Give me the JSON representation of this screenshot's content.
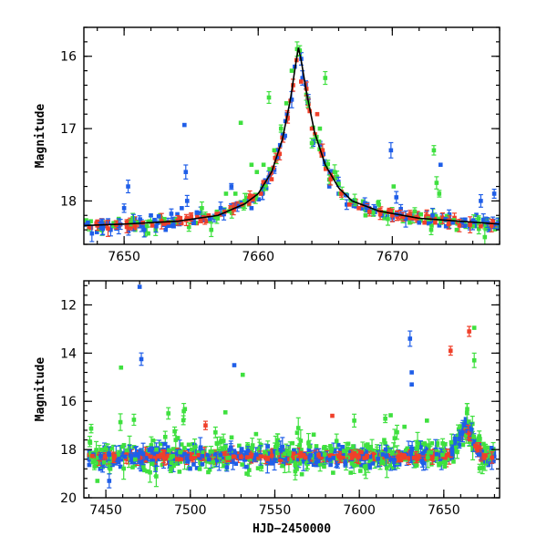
{
  "chart_data": [
    {
      "type": "scatter",
      "panel": "top",
      "title": "",
      "xlabel": "",
      "ylabel": "Magnitude",
      "xlim": [
        7647,
        7678
      ],
      "ylim": [
        18.6,
        15.6
      ],
      "y_inverted": true,
      "x_ticks": [
        7650,
        7660,
        7670
      ],
      "y_ticks": [
        16,
        17,
        18
      ],
      "grid": false,
      "legend": "none",
      "colors": {
        "blue": "#1f5ee8",
        "green": "#3fe03f",
        "red": "#f0402a",
        "model": "#000000"
      },
      "model_curve": {
        "peak_x": 7663.0,
        "peak_mag": 15.88,
        "baseline_mag": 18.34,
        "x": [
          7647,
          7650,
          7654,
          7657,
          7659,
          7660,
          7661,
          7661.8,
          7662.4,
          7662.8,
          7663.0,
          7663.2,
          7663.6,
          7664.2,
          7665,
          7666,
          7667,
          7669,
          7672,
          7678
        ],
        "y": [
          18.34,
          18.32,
          18.28,
          18.2,
          18.04,
          17.9,
          17.6,
          17.15,
          16.6,
          16.1,
          15.88,
          16.05,
          16.5,
          17.05,
          17.5,
          17.82,
          18.0,
          18.14,
          18.24,
          18.32
        ]
      },
      "series": [
        {
          "color": "blue",
          "x": [
            7647.3,
            7647.6,
            7648.4,
            7649.0,
            7649.6,
            7650.0,
            7650.3,
            7650.7,
            7651.5,
            7652.0,
            7652.4,
            7653.1,
            7653.7,
            7654.3,
            7654.5,
            7654.6,
            7654.7,
            7655.2,
            7656.4,
            7657.2,
            7658.0,
            7659.1,
            7659.5,
            7660.3,
            7661.5,
            7662.0,
            7662.5,
            7663.3,
            7664.1,
            7665.3,
            7666.0,
            7666.6,
            7667.0,
            7668.1,
            7669.2,
            7669.9,
            7670.3,
            7671.0,
            7672.0,
            7673.0,
            7673.6,
            7674.0,
            7674.5,
            7675.2,
            7676.0,
            7676.6,
            7677.1,
            7677.6
          ],
          "y": [
            18.3,
            18.45,
            18.36,
            18.4,
            18.35,
            18.1,
            17.8,
            18.3,
            18.4,
            18.2,
            18.35,
            18.4,
            18.35,
            18.1,
            16.95,
            17.6,
            18.0,
            18.3,
            18.25,
            18.1,
            17.8,
            18.0,
            18.1,
            17.9,
            17.4,
            17.1,
            16.6,
            16.3,
            17.2,
            17.8,
            17.9,
            18.05,
            18.0,
            18.1,
            18.2,
            17.3,
            17.95,
            18.25,
            18.3,
            18.2,
            17.5,
            18.35,
            18.3,
            18.3,
            18.35,
            18.0,
            18.3,
            17.9
          ]
        },
        {
          "color": "green",
          "x": [
            7650.5,
            7651.8,
            7653.0,
            7655.8,
            7656.5,
            7657.6,
            7658.3,
            7658.7,
            7659.0,
            7659.5,
            7659.9,
            7660.4,
            7660.8,
            7661.2,
            7661.7,
            7662.1,
            7662.5,
            7662.9,
            7663.1,
            7664.0,
            7664.6,
            7665.0,
            7665.7,
            7666.1,
            7666.9,
            7668.0,
            7669.0,
            7670.1,
            7671.3,
            7672.9,
            7673.1,
            7673.3,
            7673.5,
            7674.8,
            7676.0,
            7676.9
          ],
          "y": [
            18.3,
            18.45,
            18.25,
            18.1,
            18.4,
            17.9,
            17.9,
            16.92,
            18.0,
            17.5,
            17.6,
            17.5,
            16.57,
            17.3,
            17.0,
            16.65,
            16.2,
            15.9,
            15.92,
            17.2,
            17.0,
            16.3,
            17.6,
            17.9,
            18.0,
            18.2,
            18.05,
            17.8,
            18.3,
            18.4,
            17.3,
            17.75,
            17.9,
            18.4,
            18.35,
            18.5
          ]
        },
        {
          "color": "red",
          "x": [
            7647.4,
            7648.0,
            7648.8,
            7649.4,
            7650.2,
            7650.8,
            7651.4,
            7652.1,
            7652.8,
            7653.3,
            7654.0,
            7655.0,
            7655.7,
            7656.3,
            7656.9,
            7657.5,
            7658.2,
            7658.8,
            7659.6,
            7660.2,
            7661.0,
            7661.6,
            7662.2,
            7662.6,
            7663.2,
            7663.6,
            7664.0,
            7664.4,
            7664.8,
            7665.4,
            7666.2,
            7666.8,
            7667.5,
            7668.3,
            7669.1,
            7670.0,
            7670.8,
            7671.6,
            7672.4,
            7673.2,
            7674.2,
            7675.0,
            7675.8,
            7676.6,
            7677.4
          ],
          "y": [
            18.36,
            18.34,
            18.38,
            18.33,
            18.36,
            18.35,
            18.3,
            18.34,
            18.28,
            18.3,
            18.27,
            18.22,
            18.26,
            18.2,
            18.18,
            18.15,
            18.1,
            18.05,
            17.98,
            17.9,
            17.7,
            17.35,
            16.85,
            16.4,
            16.35,
            16.45,
            17.0,
            16.8,
            17.3,
            17.7,
            17.9,
            18.05,
            18.1,
            18.15,
            18.18,
            18.2,
            18.22,
            18.24,
            18.3,
            18.3,
            18.32,
            18.34,
            18.33,
            18.35,
            18.34
          ]
        }
      ]
    },
    {
      "type": "scatter",
      "panel": "bottom",
      "title": "",
      "xlabel": "HJD−2450000",
      "ylabel": "Magnitude",
      "xlim": [
        7437,
        7683
      ],
      "ylim": [
        20,
        11
      ],
      "y_inverted": true,
      "x_ticks": [
        7450,
        7500,
        7550,
        7600,
        7650
      ],
      "y_ticks": [
        12,
        14,
        16,
        18,
        20
      ],
      "grid": false,
      "legend": "none",
      "baseline_mag": 18.3,
      "outliers": [
        {
          "color": "blue",
          "x": 7470,
          "y": 11.25
        },
        {
          "color": "blue",
          "x": 7471,
          "y": 14.25
        },
        {
          "color": "green",
          "x": 7459,
          "y": 14.6
        },
        {
          "color": "blue",
          "x": 7526,
          "y": 14.5
        },
        {
          "color": "green",
          "x": 7531,
          "y": 14.9
        },
        {
          "color": "blue",
          "x": 7630,
          "y": 13.4
        },
        {
          "color": "blue",
          "x": 7631,
          "y": 14.8
        },
        {
          "color": "blue",
          "x": 7631,
          "y": 15.3
        },
        {
          "color": "red",
          "x": 7654,
          "y": 13.9
        },
        {
          "color": "red",
          "x": 7665,
          "y": 13.1
        },
        {
          "color": "green",
          "x": 7668,
          "y": 12.95
        },
        {
          "color": "green",
          "x": 7668,
          "y": 14.3
        },
        {
          "color": "red",
          "x": 7509,
          "y": 17.0
        },
        {
          "color": "red",
          "x": 7584,
          "y": 16.6
        },
        {
          "color": "green",
          "x": 7487,
          "y": 16.5
        },
        {
          "color": "green",
          "x": 7445,
          "y": 19.3
        },
        {
          "color": "blue",
          "x": 7452,
          "y": 19.3
        },
        {
          "color": "green",
          "x": 7597,
          "y": 16.8
        },
        {
          "color": "green",
          "x": 7640,
          "y": 16.8
        }
      ]
    }
  ]
}
